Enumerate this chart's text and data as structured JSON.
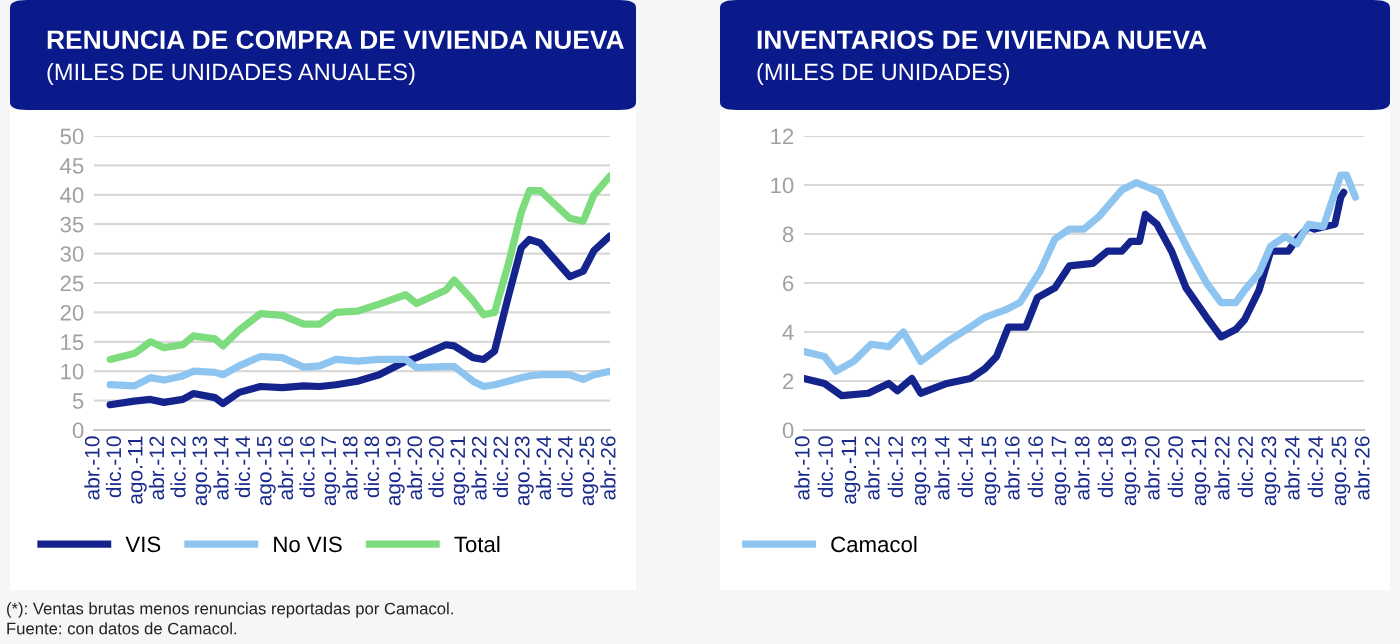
{
  "chart_data": [
    {
      "type": "line",
      "title": "RENUNCIA DE COMPRA DE VIVIENDA NUEVA",
      "subtitle": "(MILES DE UNIDADES ANUALES)",
      "x": [
        "2010-10",
        "2011-07",
        "2012-01",
        "2012-06",
        "2013-01",
        "2013-05",
        "2014-01",
        "2014-04",
        "2014-10",
        "2015-06",
        "2016-02",
        "2016-10",
        "2017-04",
        "2017-10",
        "2018-06",
        "2019-02",
        "2019-12",
        "2020-04",
        "2021-03",
        "2021-06",
        "2022-01",
        "2022-05",
        "2022-09",
        "2023-02",
        "2023-07",
        "2023-10",
        "2024-02",
        "2025-01",
        "2025-06",
        "2025-10",
        "2026-04"
      ],
      "series": [
        {
          "name": "VIS",
          "color": "#14248c",
          "values": [
            4.3,
            4.9,
            5.2,
            4.7,
            5.2,
            6.2,
            5.5,
            4.5,
            6.4,
            7.4,
            7.2,
            7.5,
            7.4,
            7.7,
            8.3,
            9.4,
            11.7,
            12.3,
            14.5,
            14.3,
            12.3,
            12,
            13.4,
            22.5,
            31,
            32.4,
            31.8,
            26.1,
            27,
            30.5,
            33
          ]
        },
        {
          "name": "No VIS",
          "color": "#8ec5f0",
          "values": [
            7.7,
            7.5,
            8.9,
            8.5,
            9.2,
            10,
            9.8,
            9.4,
            10.9,
            12.5,
            12.3,
            10.7,
            10.9,
            12,
            11.7,
            12,
            12,
            10.6,
            10.8,
            10.8,
            8.3,
            7.4,
            7.7,
            8.3,
            8.9,
            9.2,
            9.4,
            9.4,
            8.6,
            9.4,
            10
          ]
        },
        {
          "name": "Total",
          "color": "#7ddc7d",
          "values": [
            12,
            13,
            15,
            14,
            14.5,
            16,
            15.5,
            14.3,
            17,
            19.8,
            19.5,
            18,
            18,
            20,
            20.2,
            21.4,
            23,
            21.5,
            23.8,
            25.5,
            22,
            19.6,
            20,
            28,
            37,
            40.7,
            40.7,
            36,
            35.5,
            40,
            43.2
          ]
        }
      ],
      "xlim": [
        "2010-04",
        "2026-04"
      ],
      "xticks": [
        {
          "value": "2010-04",
          "label": "abr.-10"
        },
        {
          "value": "2010-12",
          "label": "dic.-10"
        },
        {
          "value": "2011-08",
          "label": "ago.-11"
        },
        {
          "value": "2012-04",
          "label": "abr.-12"
        },
        {
          "value": "2012-12",
          "label": "dic.-12"
        },
        {
          "value": "2013-08",
          "label": "ago.-13"
        },
        {
          "value": "2014-04",
          "label": "abr.-14"
        },
        {
          "value": "2014-12",
          "label": "dic.-14"
        },
        {
          "value": "2015-08",
          "label": "ago.-15"
        },
        {
          "value": "2016-04",
          "label": "abr.-16"
        },
        {
          "value": "2016-12",
          "label": "dic.-16"
        },
        {
          "value": "2017-08",
          "label": "ago.-17"
        },
        {
          "value": "2018-04",
          "label": "abr.-18"
        },
        {
          "value": "2018-12",
          "label": "dic.-18"
        },
        {
          "value": "2019-08",
          "label": "ago.-19"
        },
        {
          "value": "2020-04",
          "label": "abr.-20"
        },
        {
          "value": "2020-12",
          "label": "dic.-20"
        },
        {
          "value": "2021-08",
          "label": "ago.-21"
        },
        {
          "value": "2022-04",
          "label": "abr.-22"
        },
        {
          "value": "2022-12",
          "label": "dic.-22"
        },
        {
          "value": "2023-08",
          "label": "ago.-23"
        },
        {
          "value": "2024-04",
          "label": "abr.-24"
        },
        {
          "value": "2024-12",
          "label": "dic.-24"
        },
        {
          "value": "2025-08",
          "label": "ago.-25"
        },
        {
          "value": "2026-04",
          "label": "abr.-26"
        }
      ],
      "ylim": [
        0,
        50
      ],
      "yticks": [
        0,
        5,
        10,
        15,
        20,
        25,
        30,
        35,
        40,
        45,
        50
      ],
      "grid": "y",
      "legend": "bottom",
      "marker": "none",
      "line_style": "solid",
      "annotations": [
        "(*): Ventas brutas menos renuncias reportadas por Camacol.",
        "Fuente: con datos de Camacol."
      ]
    },
    {
      "type": "line",
      "title": "INVENTARIOS DE VIVIENDA NUEVA",
      "subtitle": "(MILES DE UNIDADES)",
      "series": [
        {
          "color": "#14248c",
          "x": [
            "2010-04",
            "2010-11",
            "2011-05",
            "2012-02",
            "2012-09",
            "2012-12",
            "2013-05",
            "2013-08",
            "2014-05",
            "2015-01",
            "2015-06",
            "2015-10",
            "2016-02",
            "2016-08",
            "2016-12",
            "2017-06",
            "2017-11",
            "2018-07",
            "2018-12",
            "2019-05",
            "2019-08",
            "2019-11",
            "2020-01",
            "2020-05",
            "2020-10",
            "2021-03",
            "2021-10",
            "2022-03",
            "2022-08",
            "2022-11",
            "2023-04",
            "2023-08",
            "2024-02",
            "2024-05",
            "2024-09",
            "2024-11",
            "2025-06",
            "2025-08",
            "2025-09"
          ],
          "values": [
            2.1,
            1.9,
            1.4,
            1.5,
            1.9,
            1.6,
            2.1,
            1.5,
            1.9,
            2.1,
            2.5,
            3,
            4.2,
            4.2,
            5.4,
            5.8,
            6.7,
            6.8,
            7.3,
            7.3,
            7.7,
            7.7,
            8.8,
            8.4,
            7.3,
            5.8,
            4.6,
            3.8,
            4.1,
            4.5,
            5.7,
            7.3,
            7.3,
            7.8,
            8.3,
            8.2,
            8.4,
            9.5,
            9.7
          ]
        },
        {
          "name": "Camacol",
          "color": "#8ec5f0",
          "x": [
            "2010-04",
            "2010-11",
            "2011-03",
            "2011-09",
            "2012-03",
            "2012-09",
            "2013-02",
            "2013-08",
            "2014-05",
            "2015-01",
            "2015-06",
            "2016-01",
            "2016-06",
            "2017-01",
            "2017-06",
            "2017-11",
            "2018-04",
            "2018-09",
            "2019-05",
            "2019-10",
            "2020-02",
            "2020-06",
            "2020-10",
            "2021-04",
            "2021-10",
            "2022-03",
            "2022-08",
            "2022-11",
            "2023-04",
            "2023-08",
            "2024-01",
            "2024-05",
            "2024-09",
            "2025-02",
            "2025-08",
            "2025-10",
            "2026-01"
          ],
          "values": [
            3.2,
            3,
            2.4,
            2.8,
            3.5,
            3.4,
            4,
            2.8,
            3.6,
            4.2,
            4.6,
            4.9,
            5.2,
            6.5,
            7.8,
            8.2,
            8.2,
            8.7,
            9.8,
            10.1,
            9.9,
            9.7,
            8.7,
            7.3,
            6,
            5.2,
            5.2,
            5.7,
            6.4,
            7.5,
            7.9,
            7.6,
            8.4,
            8.3,
            10.4,
            10.4,
            9.5
          ]
        }
      ],
      "xlim": [
        "2010-04",
        "2026-04"
      ],
      "xticks": [
        {
          "value": "2010-04",
          "label": "abr.-10"
        },
        {
          "value": "2010-12",
          "label": "dic.-10"
        },
        {
          "value": "2011-08",
          "label": "ago.-11"
        },
        {
          "value": "2012-04",
          "label": "abr.-12"
        },
        {
          "value": "2012-12",
          "label": "dic.-12"
        },
        {
          "value": "2013-08",
          "label": "ago.-13"
        },
        {
          "value": "2014-04",
          "label": "abr.-14"
        },
        {
          "value": "2014-12",
          "label": "dic.-14"
        },
        {
          "value": "2015-08",
          "label": "ago.-15"
        },
        {
          "value": "2016-04",
          "label": "abr.-16"
        },
        {
          "value": "2016-12",
          "label": "dic.-16"
        },
        {
          "value": "2017-08",
          "label": "ago.-17"
        },
        {
          "value": "2018-04",
          "label": "abr.-18"
        },
        {
          "value": "2018-12",
          "label": "dic.-18"
        },
        {
          "value": "2019-08",
          "label": "ago.-19"
        },
        {
          "value": "2020-04",
          "label": "abr.-20"
        },
        {
          "value": "2020-12",
          "label": "dic.-20"
        },
        {
          "value": "2021-08",
          "label": "ago.-21"
        },
        {
          "value": "2022-04",
          "label": "abr.-22"
        },
        {
          "value": "2022-12",
          "label": "dic.-22"
        },
        {
          "value": "2023-08",
          "label": "ago.-23"
        },
        {
          "value": "2024-04",
          "label": "abr.-24"
        },
        {
          "value": "2024-12",
          "label": "dic.-24"
        },
        {
          "value": "2025-08",
          "label": "ago.-25"
        },
        {
          "value": "2026-04",
          "label": "abr.-26"
        }
      ],
      "ylim": [
        0,
        12
      ],
      "yticks": [
        0,
        2,
        4,
        6,
        8,
        10,
        12
      ],
      "grid": "y",
      "legend": "bottom",
      "marker": "none",
      "line_style": "solid"
    }
  ]
}
